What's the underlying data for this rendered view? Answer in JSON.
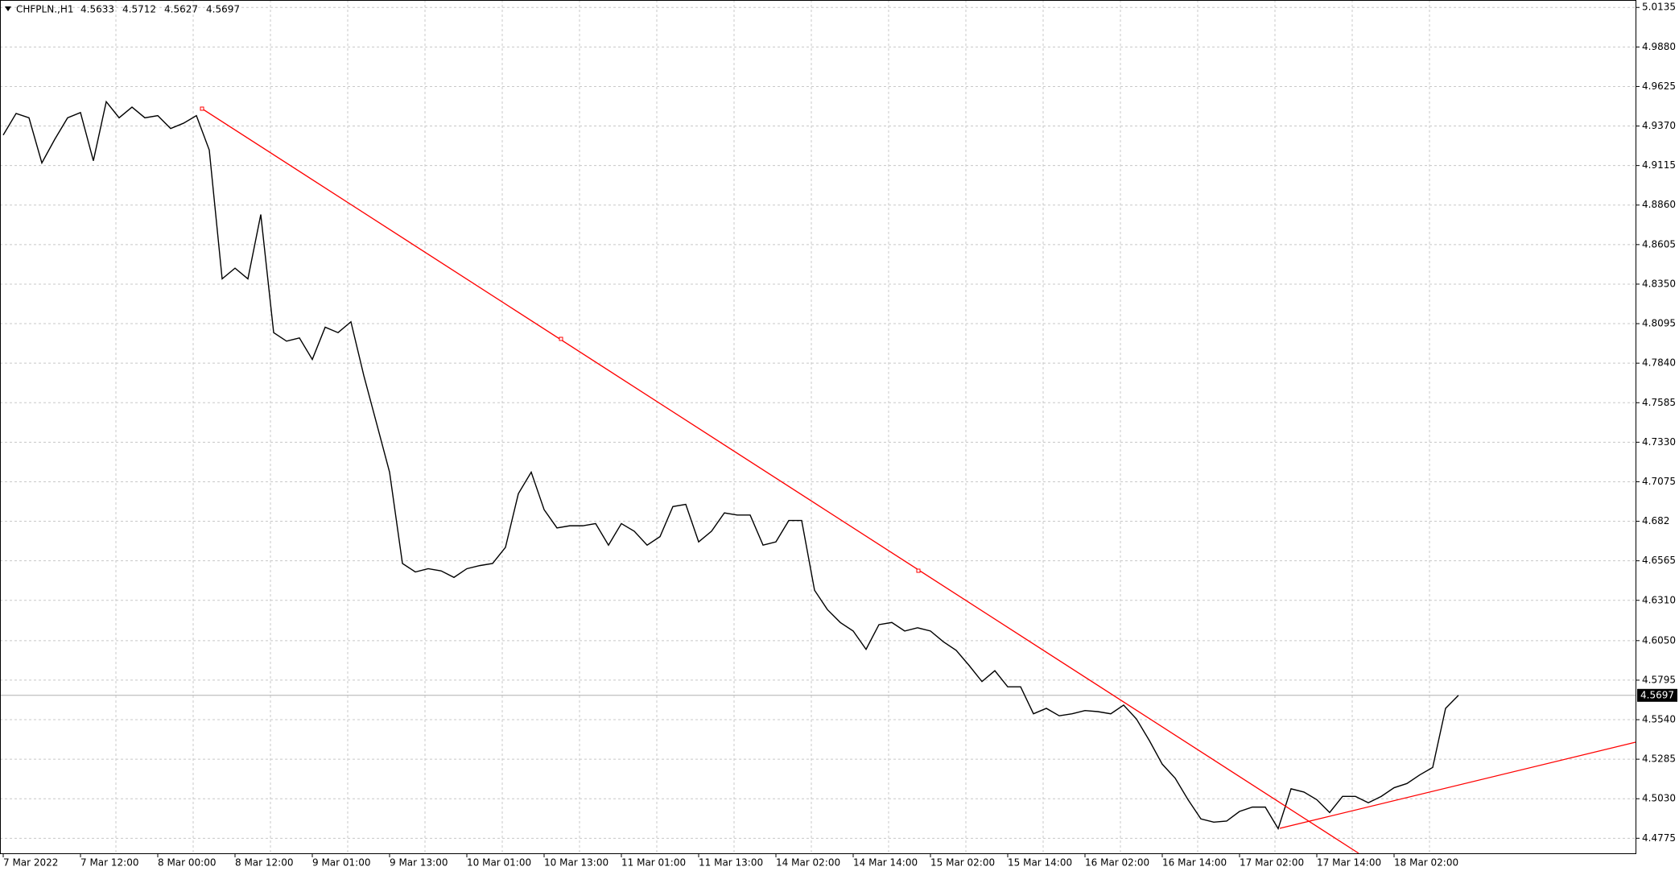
{
  "chart_data": {
    "type": "line",
    "title": "CHFPLN.,H1",
    "last_bar": [
      4.5633,
      4.5712,
      4.5627,
      4.5697
    ],
    "current_price": 4.5697,
    "color": "#000000",
    "grid": true,
    "categories": [
      "7 Mar 2022",
      null,
      null,
      null,
      null,
      null,
      "7 Mar 12:00",
      null,
      null,
      null,
      null,
      null,
      "8 Mar 00:00",
      null,
      null,
      null,
      null,
      null,
      "8 Mar 12:00",
      null,
      null,
      null,
      null,
      null,
      "9 Mar 01:00",
      null,
      null,
      null,
      null,
      null,
      "9 Mar 13:00",
      null,
      null,
      null,
      null,
      null,
      "10 Mar 01:00",
      null,
      null,
      null,
      null,
      null,
      "10 Mar 13:00",
      null,
      null,
      null,
      null,
      null,
      "11 Mar 01:00",
      null,
      null,
      null,
      null,
      null,
      "11 Mar 13:00",
      null,
      null,
      null,
      null,
      null,
      "14 Mar 02:00",
      null,
      null,
      null,
      null,
      null,
      "14 Mar 14:00",
      null,
      null,
      null,
      null,
      null,
      "15 Mar 02:00",
      null,
      null,
      null,
      null,
      null,
      "15 Mar 14:00",
      null,
      null,
      null,
      null,
      null,
      "16 Mar 02:00",
      null,
      null,
      null,
      null,
      null,
      "16 Mar 14:00",
      null,
      null,
      null,
      null,
      null,
      "17 Mar 02:00",
      null,
      null,
      null,
      null,
      null,
      "17 Mar 14:00",
      null,
      null,
      null,
      null,
      null,
      "18 Mar 02:00",
      null,
      null,
      null,
      null,
      null
    ],
    "values": [
      4.9312,
      4.9451,
      4.9423,
      4.9132,
      4.9284,
      4.9423,
      4.9457,
      4.9146,
      4.9527,
      4.9423,
      4.9492,
      4.9423,
      4.9437,
      4.9354,
      4.9388,
      4.9437,
      4.9215,
      4.8384,
      4.8453,
      4.8384,
      4.8799,
      4.8037,
      4.7982,
      4.8003,
      4.7864,
      4.8072,
      4.8037,
      4.8107,
      4.776,
      4.7449,
      4.7137,
      4.6548,
      4.6493,
      4.6514,
      4.65,
      4.6458,
      4.6514,
      4.6534,
      4.6548,
      4.6652,
      4.6998,
      4.7137,
      4.6895,
      4.6777,
      4.6791,
      4.6791,
      4.6805,
      4.6666,
      4.6805,
      4.6756,
      4.6666,
      4.6721,
      4.6915,
      4.6929,
      4.6687,
      4.6756,
      4.6874,
      4.686,
      4.686,
      4.6666,
      4.6687,
      4.6825,
      4.6825,
      4.6375,
      4.625,
      4.6167,
      4.6112,
      4.5994,
      4.6153,
      4.6167,
      4.6112,
      4.6133,
      4.6112,
      4.6043,
      4.5987,
      4.589,
      4.5786,
      4.5856,
      4.5752,
      4.5752,
      4.5578,
      4.5613,
      4.5565,
      4.5578,
      4.5599,
      4.5592,
      4.5578,
      4.5634,
      4.5544,
      4.5405,
      4.5253,
      4.5163,
      4.5024,
      4.49,
      4.4879,
      4.4886,
      4.4948,
      4.4976,
      4.4976,
      4.4837,
      4.5094,
      4.5073,
      4.5024,
      4.4941,
      4.5045,
      4.5045,
      4.5004,
      4.5045,
      4.5101,
      4.5128,
      4.5184,
      4.5232,
      4.5613,
      4.5697
    ],
    "ylim": [
      4.4678,
      5.0183
    ],
    "yticks": [
      {
        "value": 5.0135,
        "label": "5.0135"
      },
      {
        "value": 4.988,
        "label": "4.9880"
      },
      4.9625,
      {
        "value": 4.937,
        "label": "4.9370"
      },
      4.9115,
      {
        "value": 4.886,
        "label": "4.8860"
      },
      4.8605,
      {
        "value": 4.835,
        "label": "4.8350"
      },
      4.8095,
      {
        "value": 4.784,
        "label": "4.7840"
      },
      4.7585,
      {
        "value": 4.733,
        "label": "4.7330"
      },
      4.7075,
      4.682,
      4.6565,
      {
        "value": 4.631,
        "label": "4.6310"
      },
      {
        "value": 4.605,
        "label": "4.6050"
      },
      4.5795,
      {
        "value": 4.554,
        "label": "4.5540"
      },
      4.5285,
      {
        "value": 4.503,
        "label": "4.5030"
      },
      4.4775
    ]
  }
}
